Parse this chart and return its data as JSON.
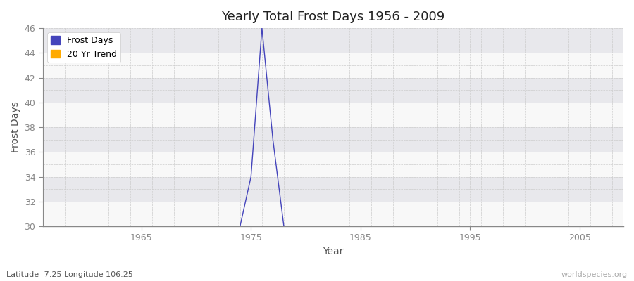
{
  "title": "Yearly Total Frost Days 1956 - 2009",
  "xlabel": "Year",
  "ylabel": "Frost Days",
  "xlim": [
    1956,
    2009
  ],
  "ylim": [
    30,
    46
  ],
  "yticks": [
    30,
    32,
    34,
    36,
    38,
    40,
    42,
    44,
    46
  ],
  "xticks": [
    1965,
    1975,
    1985,
    1995,
    2005
  ],
  "frost_days_color": "#4444bb",
  "trend_color": "#ffaa00",
  "background_color": "#ffffff",
  "plot_bg_color": "#f0f0f0",
  "band_color_light": "#f8f8f8",
  "band_color_dark": "#e8e8ec",
  "grid_minor_color": "#cccccc",
  "frost_years": [
    1956,
    1957,
    1958,
    1959,
    1960,
    1961,
    1962,
    1963,
    1964,
    1965,
    1966,
    1967,
    1968,
    1969,
    1970,
    1971,
    1972,
    1973,
    1974,
    1975,
    1976,
    1977,
    1978,
    1979,
    1980,
    1981,
    1982,
    1983,
    1984,
    1985,
    1986,
    1987,
    1988,
    1989,
    1990,
    1991,
    1992,
    1993,
    1994,
    1995,
    1996,
    1997,
    1998,
    1999,
    2000,
    2001,
    2002,
    2003,
    2004,
    2005,
    2006,
    2007,
    2008,
    2009
  ],
  "frost_values": [
    30,
    30,
    30,
    30,
    30,
    30,
    30,
    30,
    30,
    30,
    30,
    30,
    30,
    30,
    30,
    30,
    30,
    30,
    30,
    34,
    46,
    37,
    30,
    30,
    30,
    30,
    30,
    30,
    30,
    30,
    30,
    30,
    30,
    30,
    30,
    30,
    30,
    30,
    30,
    30,
    30,
    30,
    30,
    30,
    30,
    30,
    30,
    30,
    30,
    30,
    30,
    30,
    30,
    30
  ],
  "subtitle": "Latitude -7.25 Longitude 106.25",
  "watermark": "worldspecies.org",
  "legend_frost_label": "Frost Days",
  "legend_trend_label": "20 Yr Trend"
}
